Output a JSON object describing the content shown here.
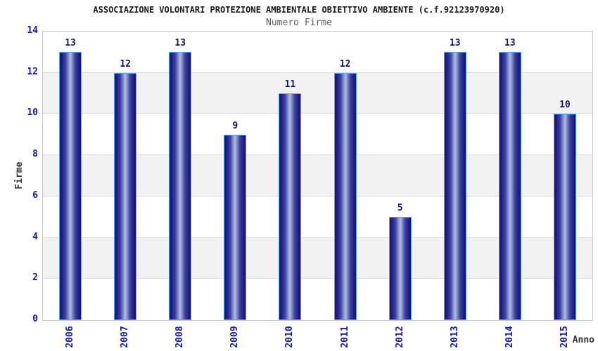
{
  "header": {
    "title": "ASSOCIAZIONE VOLONTARI PROTEZIONE AMBIENTALE OBIETTIVO AMBIENTE (c.f.92123970920)",
    "subtitle": "Numero Firme"
  },
  "chart_data": {
    "type": "bar",
    "title": "ASSOCIAZIONE VOLONTARI PROTEZIONE AMBIENTALE OBIETTIVO AMBIENTE (c.f.92123970920)",
    "subtitle": "Numero Firme",
    "categories": [
      "2006",
      "2007",
      "2008",
      "2009",
      "2010",
      "2011",
      "2012",
      "2013",
      "2014",
      "2015"
    ],
    "values": [
      13,
      12,
      13,
      9,
      11,
      12,
      5,
      13,
      13,
      10
    ],
    "xlabel": "Anno",
    "ylabel": "Firme",
    "ylim": [
      0,
      14
    ],
    "yticks": [
      0,
      2,
      4,
      6,
      8,
      10,
      12,
      14
    ],
    "legend": "none",
    "grid": "alternating-horizontal-bands",
    "colors": {
      "bar_edge_dark": "#14146e",
      "bar_mid": "#3c42a0",
      "bar_center_light": "#aab3dd",
      "bar_border": "#4da6ff",
      "tick_label": "#1414cc",
      "value_label": "#15156e",
      "band_gray": "#f2f2f2",
      "band_white": "#ffffff",
      "gridline": "#dcdcdc",
      "plot_border": "#c9c9c9",
      "axis_title": "#333333",
      "title": "#1a1a1a",
      "subtitle": "#595959"
    }
  }
}
